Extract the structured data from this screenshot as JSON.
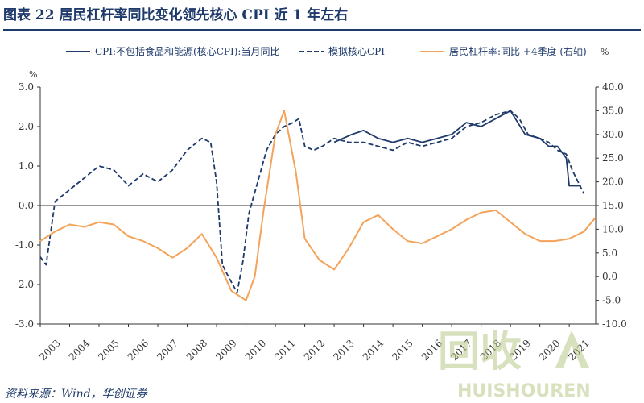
{
  "title": "图表 22   居民杠杆率同比变化领先核心 CPI 近 1 年左右",
  "source": "资料来源：Wind，华创证券",
  "watermark": {
    "cn": "回收",
    "en": "HUISHOUREN"
  },
  "colors": {
    "navy": "#1e3a6b",
    "orange": "#f4a35a",
    "axis": "#333333"
  },
  "chart_data": {
    "type": "line",
    "left_axis": {
      "unit_label": "%",
      "ylim": [
        -3.0,
        3.0
      ],
      "ticks": [
        3.0,
        2.0,
        1.0,
        0.0,
        -1.0,
        -2.0,
        -3.0
      ],
      "tick_labels": [
        "3.0",
        "2.0",
        "1.0",
        "0.0",
        "-1.0",
        "-2.0",
        "-3.0"
      ]
    },
    "right_axis": {
      "unit_label": "%",
      "ylim": [
        -10.0,
        40.0
      ],
      "ticks": [
        40.0,
        35.0,
        30.0,
        25.0,
        20.0,
        15.0,
        10.0,
        5.0,
        0.0,
        -5.0,
        -10.0
      ],
      "tick_labels": [
        "40.0",
        "35.0",
        "30.0",
        "25.0",
        "20.0",
        "15.0",
        "10.0",
        "5.0",
        "0.0",
        "-5.0",
        "-10.0"
      ]
    },
    "x_axis": {
      "xlim": [
        2003,
        2021.9
      ],
      "tick_labels": [
        "2003",
        "2004",
        "2005",
        "2006",
        "2007",
        "2008",
        "2009",
        "2010",
        "2011",
        "2012",
        "2013",
        "2014",
        "2015",
        "2016",
        "2017",
        "2018",
        "2019",
        "2020",
        "2021"
      ]
    },
    "legend": {
      "placement": "top"
    },
    "series": [
      {
        "name": "CPI:不包括食品和能源(核心CPI):当月同比",
        "axis": "left",
        "style": "solid",
        "color": "#1e3a6b",
        "x": [
          2013.0,
          2013.3,
          2013.6,
          2014.0,
          2014.5,
          2015.0,
          2015.5,
          2016.0,
          2016.5,
          2017.0,
          2017.5,
          2018.0,
          2018.5,
          2019.0,
          2019.5,
          2020.0,
          2020.3,
          2020.6,
          2020.9,
          2021.0,
          2021.2,
          2021.4
        ],
        "y": [
          1.6,
          1.7,
          1.8,
          1.9,
          1.7,
          1.6,
          1.7,
          1.6,
          1.7,
          1.8,
          2.1,
          2.0,
          2.2,
          2.4,
          1.8,
          1.7,
          1.5,
          1.5,
          1.2,
          0.5,
          0.5,
          0.5
        ]
      },
      {
        "name": "模拟核心CPI",
        "axis": "left",
        "style": "dashed",
        "color": "#1e3a6b",
        "x": [
          2003.0,
          2003.2,
          2003.5,
          2004.0,
          2004.5,
          2005.0,
          2005.5,
          2006.0,
          2006.5,
          2007.0,
          2007.5,
          2008.0,
          2008.5,
          2008.8,
          2009.0,
          2009.2,
          2009.4,
          2009.7,
          2009.9,
          2010.1,
          2010.4,
          2010.7,
          2011.0,
          2011.3,
          2011.6,
          2011.8,
          2012.0,
          2012.3,
          2012.6,
          2013.0,
          2013.5,
          2014.0,
          2014.5,
          2015.0,
          2015.5,
          2016.0,
          2016.5,
          2017.0,
          2017.5,
          2018.0,
          2018.5,
          2019.0,
          2019.3,
          2019.6,
          2020.0,
          2020.3,
          2020.6,
          2020.9,
          2021.1,
          2021.3,
          2021.5
        ],
        "y": [
          -1.3,
          -1.5,
          0.1,
          0.4,
          0.7,
          1.0,
          0.9,
          0.5,
          0.8,
          0.6,
          0.9,
          1.4,
          1.7,
          1.6,
          0.6,
          -1.5,
          -1.8,
          -2.2,
          -1.4,
          -0.2,
          0.6,
          1.4,
          1.8,
          2.0,
          2.1,
          2.2,
          1.5,
          1.4,
          1.5,
          1.7,
          1.6,
          1.6,
          1.5,
          1.4,
          1.6,
          1.5,
          1.6,
          1.7,
          2.0,
          2.1,
          2.3,
          2.4,
          2.2,
          1.8,
          1.7,
          1.6,
          1.4,
          1.3,
          0.9,
          0.6,
          0.3
        ]
      },
      {
        "name": "居民杠杆率:同比 +4季度 (右轴)",
        "axis": "right",
        "style": "solid",
        "color": "#f4a35a",
        "x": [
          2003.0,
          2003.5,
          2004.0,
          2004.5,
          2005.0,
          2005.5,
          2006.0,
          2006.5,
          2007.0,
          2007.5,
          2008.0,
          2008.5,
          2009.0,
          2009.5,
          2010.0,
          2010.3,
          2010.6,
          2011.0,
          2011.3,
          2011.7,
          2012.0,
          2012.5,
          2013.0,
          2013.5,
          2014.0,
          2014.5,
          2015.0,
          2015.5,
          2016.0,
          2016.5,
          2017.0,
          2017.5,
          2018.0,
          2018.5,
          2019.0,
          2019.5,
          2020.0,
          2020.5,
          2021.0,
          2021.5,
          2021.9
        ],
        "y": [
          7.5,
          9.5,
          11.0,
          10.5,
          11.5,
          11.0,
          8.5,
          7.5,
          6.0,
          4.0,
          6.0,
          9.0,
          4.0,
          -3.0,
          -5.0,
          0.0,
          14.0,
          30.0,
          35.0,
          22.0,
          8.0,
          3.5,
          1.5,
          6.0,
          11.5,
          13.0,
          10.0,
          7.5,
          7.0,
          8.5,
          10.0,
          12.0,
          13.5,
          14.0,
          11.5,
          9.0,
          7.5,
          7.5,
          8.0,
          9.5,
          12.5
        ]
      }
    ]
  }
}
